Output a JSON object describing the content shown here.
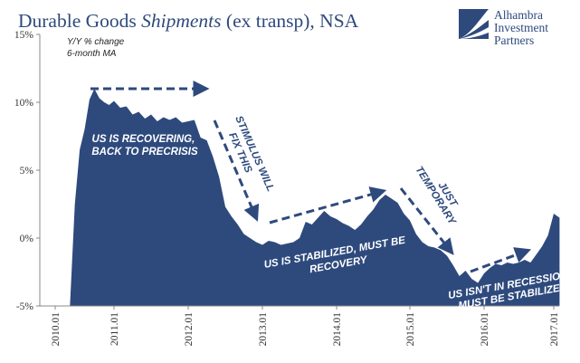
{
  "header": {
    "title_part1": "Durable Goods ",
    "title_italic": "Shipments",
    "title_part2": " (ex transp), NSA"
  },
  "logo": {
    "line1": "Alhambra",
    "line2": "Investment",
    "line3": "Partners"
  },
  "chart_data": {
    "type": "area",
    "series_note": [
      "Y/Y % change",
      "6-month MA"
    ],
    "ylim": [
      -5,
      15
    ],
    "y_ticks": [
      -5,
      0,
      5,
      10,
      15
    ],
    "y_tick_labels": [
      "-5%",
      "0%",
      "5%",
      "10%",
      "15%"
    ],
    "x_tick_labels": [
      "2010.01",
      "2011.01",
      "2012.01",
      "2013.01",
      "2014.01",
      "2015.01",
      "2016.01",
      "2017.01"
    ],
    "grid": false,
    "fill_color": "#2e4a7d",
    "x": [
      "2010.04",
      "2010.05",
      "2010.06",
      "2010.07",
      "2010.08",
      "2010.09",
      "2010.10",
      "2010.11",
      "2010.12",
      "2011.01",
      "2011.02",
      "2011.03",
      "2011.04",
      "2011.05",
      "2011.06",
      "2011.07",
      "2011.08",
      "2011.09",
      "2011.10",
      "2011.11",
      "2011.12",
      "2012.01",
      "2012.02",
      "2012.03",
      "2012.04",
      "2012.05",
      "2012.06",
      "2012.07",
      "2012.08",
      "2012.09",
      "2012.10",
      "2012.11",
      "2012.12",
      "2013.01",
      "2013.02",
      "2013.03",
      "2013.04",
      "2013.05",
      "2013.06",
      "2013.07",
      "2013.08",
      "2013.09",
      "2013.10",
      "2013.11",
      "2013.12",
      "2014.01",
      "2014.02",
      "2014.03",
      "2014.04",
      "2014.05",
      "2014.06",
      "2014.07",
      "2014.08",
      "2014.09",
      "2014.10",
      "2014.11",
      "2014.12",
      "2015.01",
      "2015.02",
      "2015.03",
      "2015.04",
      "2015.05",
      "2015.06",
      "2015.07",
      "2015.08",
      "2015.09",
      "2015.10",
      "2015.11",
      "2015.12",
      "2016.01",
      "2016.02",
      "2016.03",
      "2016.04",
      "2016.05",
      "2016.06",
      "2016.07",
      "2016.08",
      "2016.09",
      "2016.10",
      "2016.11",
      "2016.12",
      "2017.01",
      "2017.02"
    ],
    "values": [
      -5,
      2.5,
      6.5,
      8.0,
      10.2,
      11.0,
      10.3,
      10.0,
      9.8,
      10.1,
      9.6,
      9.7,
      9.1,
      9.3,
      8.8,
      9.1,
      8.6,
      8.9,
      8.7,
      8.9,
      8.5,
      8.6,
      8.7,
      7.4,
      7.2,
      6.0,
      4.5,
      2.3,
      1.6,
      1.0,
      0.3,
      0.0,
      -0.3,
      -0.5,
      -0.2,
      -0.3,
      -0.5,
      -0.4,
      -0.3,
      0.0,
      1.2,
      1.0,
      1.5,
      2.0,
      1.6,
      1.4,
      1.1,
      0.9,
      0.6,
      1.0,
      1.6,
      2.1,
      2.8,
      3.2,
      2.9,
      2.6,
      1.8,
      1.3,
      0.3,
      -0.3,
      -0.6,
      -0.7,
      -0.9,
      -1.3,
      -2.0,
      -2.8,
      -2.4,
      -3.0,
      -3.3,
      -2.6,
      -2.2,
      -1.9,
      -2.0,
      -1.8,
      -1.9,
      -1.8,
      -1.6,
      -1.8,
      -1.2,
      -0.6,
      0.2,
      1.8,
      1.5
    ],
    "annotations": [
      {
        "lines": [
          "US IS RECOVERING,",
          "BACK TO PRECRISIS"
        ],
        "style": "white"
      },
      {
        "lines": [
          "STIMULUS WILL",
          "FIX THIS"
        ],
        "style": "dark"
      },
      {
        "lines": [
          "US IS STABILIZED, MUST BE",
          "RECOVERY"
        ],
        "style": "white"
      },
      {
        "lines": [
          "JUST",
          "TEMPORARY"
        ],
        "style": "dark"
      },
      {
        "lines": [
          "US ISN'T IN RECESSION,",
          "MUST BE STABILIZED"
        ],
        "style": "white"
      }
    ]
  }
}
